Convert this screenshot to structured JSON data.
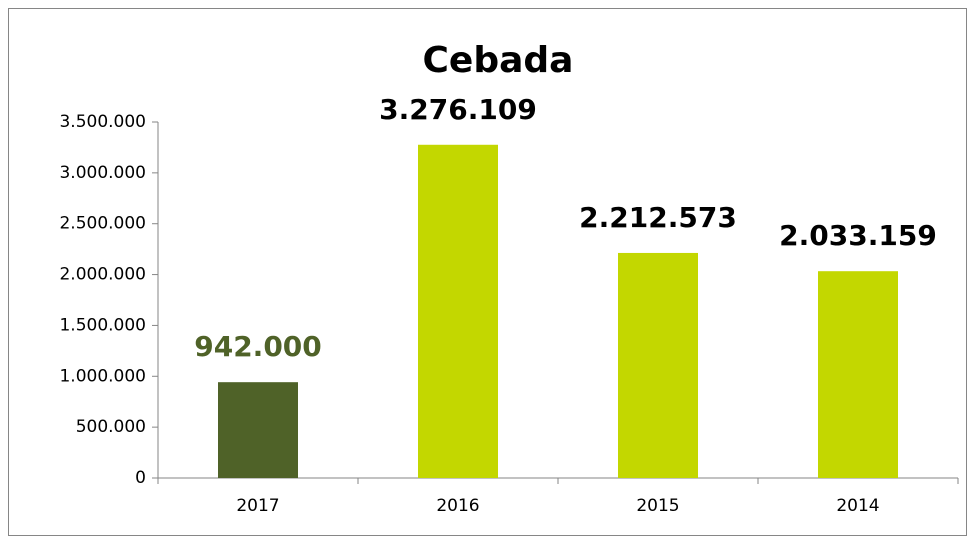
{
  "chart_data": {
    "type": "bar",
    "title": "Cebada",
    "categories": [
      "2017",
      "2016",
      "2015",
      "2014"
    ],
    "values": [
      942000,
      3276109,
      2212573,
      2033159
    ],
    "value_labels": [
      "942.000",
      "3.276.109",
      "2.212.573",
      "2.033.159"
    ],
    "colors": [
      "#4f6228",
      "#c3d700",
      "#c3d700",
      "#c3d700"
    ],
    "label_colors": [
      "#4f6228",
      "#000000",
      "#000000",
      "#000000"
    ],
    "ylim": [
      0,
      3500000
    ],
    "yticks": [
      0,
      {
        "value": 500000,
        "label": "500.000"
      },
      {
        "value": 1000000,
        "label": "1.000.000"
      },
      {
        "value": 1500000,
        "label": "1.500.000"
      },
      {
        "value": 2000000,
        "label": "2.000.000"
      },
      {
        "value": 2500000,
        "label": "2.500.000"
      },
      {
        "value": 3000000,
        "label": "3.000.000"
      },
      {
        "value": 3500000,
        "label": "3.500.000"
      }
    ],
    "grid": false
  }
}
